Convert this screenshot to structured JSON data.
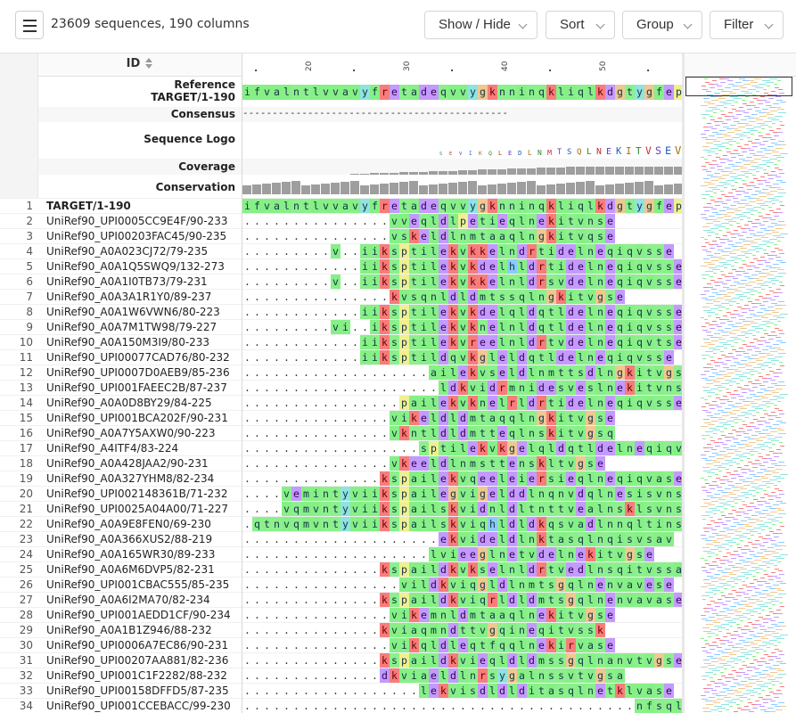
{
  "toolbar": {
    "sequence_count": "23609 sequences, 190 columns",
    "buttons": [
      {
        "label": "Show / Hide"
      },
      {
        "label": "Sort"
      },
      {
        "label": "Group"
      },
      {
        "label": "Filter"
      }
    ]
  },
  "header": {
    "id_label": "ID",
    "ruler_ticks": [
      ".",
      "20",
      ".",
      "30",
      ".",
      "40",
      ".",
      "50",
      "."
    ]
  },
  "tracks": {
    "reference_label": "Reference",
    "reference_id": "TARGET/1-190",
    "consensus_label": "Consensus",
    "logo_label": "Sequence Logo",
    "coverage_label": "Coverage",
    "conservation_label": "Conservation",
    "reference_seq": "ifvalntlvvavyfretadeqvvygknninqkliqlkdgtygfep",
    "consensus_seq": "---------------------------------------------"
  },
  "rows": [
    {
      "n": "1",
      "id": "TARGET/1-190",
      "seq": "ifvalntlvvavyfretadeqvvygknninqkliqlkdgtygfep"
    },
    {
      "n": "2",
      "id": "UniRef90_UPI0005CC9E4F/90-233",
      "seq": "...............vveqldlpetieqlnekitvnse"
    },
    {
      "n": "3",
      "id": "UniRef90_UPI00203FAC45/90-235",
      "seq": "...............vskeldlnmtaaqlngkitvqse"
    },
    {
      "n": "4",
      "id": "UniRef90_A0A023CJ72/79-235",
      "seq": ".........v..iikspti lekvkkelndrtidelneqiqvsse"
    },
    {
      "n": "5",
      "id": "UniRef90_A0A1Q5SWQ9/132-273",
      "seq": "............iiksptilekvkdelhldrtidelneqiqvsse"
    },
    {
      "n": "6",
      "id": "UniRef90_A0A1I0TB73/79-231",
      "seq": ".........v..iiksptilekvkkelnldrsvdelneqiqvsse"
    },
    {
      "n": "7",
      "id": "UniRef90_A0A3A1R1Y0/89-237",
      "seq": "...............kvsqnldldmtssqlngkitvgse"
    },
    {
      "n": "8",
      "id": "UniRef90_A0A1W6VWN6/80-223",
      "seq": "............iiksptilekvkdelqldqtldelneqiqvsse"
    },
    {
      "n": "9",
      "id": "UniRef90_A0A7M1TW98/79-227",
      "seq": ".........vi..iksptilekvknelnldqtldelneqiqvsse"
    },
    {
      "n": "10",
      "id": "UniRef90_A0A150M3I9/80-233",
      "seq": "............iiksptilekvreelnldrtvdelneqiqvtse"
    },
    {
      "n": "11",
      "id": "UniRef90_UPI00077CAD76/80-232",
      "seq": "............iiksptildqvkgleldqtldelneqiqvsse"
    },
    {
      "n": "12",
      "id": "UniRef90_UPI0007D0AEB9/85-236",
      "seq": "...................aile kvseldlnmttsdlngkitvgse"
    },
    {
      "n": "13",
      "id": "UniRef90_UPI001FAEEC2B/87-237",
      "seq": "....................ldkvidrmnidesveslnekitvnse"
    },
    {
      "n": "14",
      "id": "UniRef90_A0A0D8BY29/84-225",
      "seq": "................paile kvknelrldrtidelneqiqvsse"
    },
    {
      "n": "15",
      "id": "UniRef90_UPI001BCA202F/90-231",
      "seq": "...............vikeldldmtaqqlngkitvgse"
    },
    {
      "n": "16",
      "id": "UniRef90_A0A7Y5AXW0/90-223",
      "seq": "...............vkntldldmtteqlnskitvgsq"
    },
    {
      "n": "17",
      "id": "UniRef90_A4ITF4/83-224",
      "seq": "..................sptilekvkgelqldqtldelneqiqvsse"
    },
    {
      "n": "18",
      "id": "UniRef90_A0A428JAA2/90-231",
      "seq": "...............vkeeldlnmsttenskltvgse"
    },
    {
      "n": "19",
      "id": "UniRef90_A0A327YHM8/82-234",
      "seq": "..............kspailekvqeeleiersieqlneqiqvase"
    },
    {
      "n": "20",
      "id": "UniRef90_UPI002148361B/71-232",
      "seq": "....veminty viikspailegvigelddlnqnvdqlnesisvnse"
    },
    {
      "n": "21",
      "id": "UniRef90_UPI0025A04A00/71-227",
      "seq": "....vqmvnty viikspailskvidnldltnttvealnsklsvnse"
    },
    {
      "n": "22",
      "id": "UniRef90_A0A9E8FEN0/69-230",
      "seq": ".qtnvqmvntyviikspailskviqhldldkqsvadlnnqltinse"
    },
    {
      "n": "23",
      "id": "UniRef90_A0A366XUS2/88-219",
      "seq": "....................ekvideldlnktasqlnqisvsav"
    },
    {
      "n": "24",
      "id": "UniRef90_A0A165WR30/89-233",
      "seq": "...................lvieeglnetvdelnekitvgse"
    },
    {
      "n": "25",
      "id": "UniRef90_A0A6M6DVP5/82-231",
      "seq": "..............kspaildkvkselnldrtvedlnsqitvssa"
    },
    {
      "n": "26",
      "id": "UniRef90_UPI001CBAC555/85-235",
      "seq": "................vildkviqgldlnmtsgqlnenvavese"
    },
    {
      "n": "27",
      "id": "UniRef90_A0A6I2MA70/82-234",
      "seq": "..............kspaildkviqrldldmtsgqlnenvavase"
    },
    {
      "n": "28",
      "id": "UniRef90_UPI001AEDD1CF/90-234",
      "seq": "...............vikemnldmtaaqlnekitvgse"
    },
    {
      "n": "29",
      "id": "UniRef90_A0A1B1Z946/88-232",
      "seq": "..............kviaqmndttvgqineqitvssk"
    },
    {
      "n": "30",
      "id": "UniRef90_UPI0006A7EC86/90-231",
      "seq": "...............vikqldleqtfqqlnekirvase"
    },
    {
      "n": "31",
      "id": "UniRef90_UPI00207AA881/82-236",
      "seq": "..............kspaildkvieqldldmssgqlnanvtvgse"
    },
    {
      "n": "32",
      "id": "UniRef90_UPI001C1F2282/88-232",
      "seq": "..............dkviaeldlnrsygalnssvtvgsa"
    },
    {
      "n": "33",
      "id": "UniRef90_UPI00158DFFD5/87-235",
      "seq": "..................lekvisdldlditasqlnetklvase"
    },
    {
      "n": "34",
      "id": "UniRef90_UPI001CCEBACC/99-230",
      "seq": "........................................nfsqlngkitvatk"
    }
  ],
  "colors": {
    "hydrophobic": "#80ff80",
    "polar": "#c8a0ff",
    "charged_pos": "#ff8080",
    "charged_neg": "#bb9aff",
    "aromatic": "#80c0ff",
    "special": "#c0ff80"
  }
}
